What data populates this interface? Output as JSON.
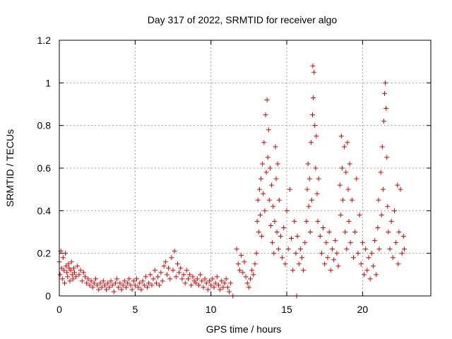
{
  "chart_data": {
    "type": "scatter",
    "title": "Day 317 of 2022, SRMTID for receiver algo",
    "xlabel": "GPS time / hours",
    "ylabel": "SRMTID / TECUs",
    "xlim": [
      0,
      24.5
    ],
    "ylim": [
      0,
      1.2
    ],
    "xticks": [
      0,
      5,
      10,
      15,
      20
    ],
    "xtick_labels": [
      "0",
      "5",
      "10",
      "15",
      "20"
    ],
    "yticks": [
      0,
      0.2,
      0.4,
      0.6,
      0.8,
      1.0,
      1.2
    ],
    "ytick_labels": [
      "0",
      "0.2",
      "0.4",
      "0.6",
      "0.8",
      "1",
      "1.2"
    ],
    "grid": true,
    "marker": "+",
    "series": [
      {
        "name": "SRMTID",
        "color": "#e00000",
        "points": [
          [
            0.0,
            0.16
          ],
          [
            0.05,
            0.1
          ],
          [
            0.1,
            0.21
          ],
          [
            0.15,
            0.13
          ],
          [
            0.2,
            0.08
          ],
          [
            0.25,
            0.18
          ],
          [
            0.3,
            0.12
          ],
          [
            0.35,
            0.06
          ],
          [
            0.4,
            0.2
          ],
          [
            0.45,
            0.14
          ],
          [
            0.5,
            0.11
          ],
          [
            0.55,
            0.09
          ],
          [
            0.6,
            0.15
          ],
          [
            0.65,
            0.13
          ],
          [
            0.7,
            0.07
          ],
          [
            0.75,
            0.12
          ],
          [
            0.8,
            0.16
          ],
          [
            0.85,
            0.1
          ],
          [
            0.9,
            0.08
          ],
          [
            0.95,
            0.13
          ],
          [
            1.0,
            0.11
          ],
          [
            1.1,
            0.09
          ],
          [
            1.2,
            0.14
          ],
          [
            1.3,
            0.1
          ],
          [
            1.4,
            0.12
          ],
          [
            1.5,
            0.07
          ],
          [
            1.6,
            0.11
          ],
          [
            1.7,
            0.09
          ],
          [
            1.8,
            0.06
          ],
          [
            1.9,
            0.08
          ],
          [
            2.0,
            0.05
          ],
          [
            2.1,
            0.07
          ],
          [
            2.2,
            0.04
          ],
          [
            2.3,
            0.06
          ],
          [
            2.4,
            0.08
          ],
          [
            2.5,
            0.05
          ],
          [
            2.6,
            0.03
          ],
          [
            2.7,
            0.06
          ],
          [
            2.8,
            0.04
          ],
          [
            2.9,
            0.07
          ],
          [
            3.0,
            0.05
          ],
          [
            3.1,
            0.03
          ],
          [
            3.2,
            0.06
          ],
          [
            3.3,
            0.04
          ],
          [
            3.4,
            0.07
          ],
          [
            3.5,
            0.05
          ],
          [
            3.6,
            0.02
          ],
          [
            3.7,
            0.06
          ],
          [
            3.8,
            0.08
          ],
          [
            3.9,
            0.04
          ],
          [
            4.0,
            0.06
          ],
          [
            4.1,
            0.03
          ],
          [
            4.2,
            0.05
          ],
          [
            4.3,
            0.07
          ],
          [
            4.4,
            0.04
          ],
          [
            4.5,
            0.06
          ],
          [
            4.6,
            0.08
          ],
          [
            4.7,
            0.05
          ],
          [
            4.8,
            0.03
          ],
          [
            4.9,
            0.07
          ],
          [
            5.0,
            0.05
          ],
          [
            5.1,
            0.08
          ],
          [
            5.2,
            0.04
          ],
          [
            5.3,
            0.06
          ],
          [
            5.4,
            0.03
          ],
          [
            5.5,
            0.07
          ],
          [
            5.6,
            0.05
          ],
          [
            5.7,
            0.09
          ],
          [
            5.8,
            0.04
          ],
          [
            5.9,
            0.06
          ],
          [
            6.0,
            0.1
          ],
          [
            6.1,
            0.05
          ],
          [
            6.2,
            0.08
          ],
          [
            6.3,
            0.12
          ],
          [
            6.4,
            0.06
          ],
          [
            6.5,
            0.09
          ],
          [
            6.6,
            0.05
          ],
          [
            6.7,
            0.11
          ],
          [
            6.8,
            0.07
          ],
          [
            6.9,
            0.14
          ],
          [
            7.0,
            0.16
          ],
          [
            7.1,
            0.1
          ],
          [
            7.2,
            0.13
          ],
          [
            7.3,
            0.08
          ],
          [
            7.4,
            0.18
          ],
          [
            7.5,
            0.12
          ],
          [
            7.6,
            0.21
          ],
          [
            7.7,
            0.09
          ],
          [
            7.8,
            0.15
          ],
          [
            7.9,
            0.11
          ],
          [
            8.0,
            0.13
          ],
          [
            8.1,
            0.08
          ],
          [
            8.2,
            0.1
          ],
          [
            8.3,
            0.06
          ],
          [
            8.4,
            0.12
          ],
          [
            8.5,
            0.08
          ],
          [
            8.6,
            0.1
          ],
          [
            8.7,
            0.05
          ],
          [
            8.8,
            0.09
          ],
          [
            8.9,
            0.07
          ],
          [
            9.0,
            0.06
          ],
          [
            9.1,
            0.08
          ],
          [
            9.2,
            0.05
          ],
          [
            9.3,
            0.1
          ],
          [
            9.4,
            0.07
          ],
          [
            9.5,
            0.04
          ],
          [
            9.6,
            0.08
          ],
          [
            9.7,
            0.06
          ],
          [
            9.8,
            0.03
          ],
          [
            9.9,
            0.07
          ],
          [
            10.0,
            0.05
          ],
          [
            10.1,
            0.08
          ],
          [
            10.2,
            0.04
          ],
          [
            10.3,
            0.06
          ],
          [
            10.4,
            0.09
          ],
          [
            10.5,
            0.05
          ],
          [
            10.6,
            0.03
          ],
          [
            10.7,
            0.07
          ],
          [
            10.8,
            0.04
          ],
          [
            10.9,
            0.06
          ],
          [
            11.0,
            0.08
          ],
          [
            11.1,
            0.04
          ],
          [
            11.2,
            0.02
          ],
          [
            11.3,
            0.06
          ],
          [
            11.45,
            0.0
          ],
          [
            11.7,
            0.22
          ],
          [
            11.8,
            0.15
          ],
          [
            11.9,
            0.12
          ],
          [
            12.0,
            0.19
          ],
          [
            12.1,
            0.11
          ],
          [
            12.2,
            0.16
          ],
          [
            12.3,
            0.09
          ],
          [
            12.4,
            0.06
          ],
          [
            12.5,
            0.04
          ],
          [
            12.6,
            0.08
          ],
          [
            12.7,
            0.12
          ],
          [
            12.8,
            0.1
          ],
          [
            12.9,
            0.15
          ],
          [
            13.0,
            0.2
          ],
          [
            13.05,
            0.35
          ],
          [
            13.1,
            0.45
          ],
          [
            13.15,
            0.3
          ],
          [
            13.2,
            0.5
          ],
          [
            13.25,
            0.38
          ],
          [
            13.3,
            0.55
          ],
          [
            13.35,
            0.28
          ],
          [
            13.4,
            0.62
          ],
          [
            13.45,
            0.48
          ],
          [
            13.5,
            0.72
          ],
          [
            13.55,
            0.4
          ],
          [
            13.6,
            0.85
          ],
          [
            13.65,
            0.58
          ],
          [
            13.7,
            0.92
          ],
          [
            13.75,
            0.65
          ],
          [
            13.8,
            0.78
          ],
          [
            13.85,
            0.45
          ],
          [
            13.9,
            0.6
          ],
          [
            13.95,
            0.33
          ],
          [
            14.0,
            0.52
          ],
          [
            14.05,
            0.25
          ],
          [
            14.1,
            0.42
          ],
          [
            14.15,
            0.2
          ],
          [
            14.2,
            0.35
          ],
          [
            14.25,
            0.7
          ],
          [
            14.3,
            0.55
          ],
          [
            14.35,
            0.3
          ],
          [
            14.4,
            0.62
          ],
          [
            14.45,
            0.22
          ],
          [
            14.5,
            0.45
          ],
          [
            14.6,
            0.28
          ],
          [
            14.7,
            0.18
          ],
          [
            14.8,
            0.32
          ],
          [
            14.9,
            0.15
          ],
          [
            15.0,
            0.4
          ],
          [
            15.1,
            0.22
          ],
          [
            15.2,
            0.5
          ],
          [
            15.3,
            0.27
          ],
          [
            15.4,
            0.12
          ],
          [
            15.5,
            0.35
          ],
          [
            15.6,
            0.2
          ],
          [
            15.65,
            0.0
          ],
          [
            15.7,
            0.28
          ],
          [
            15.8,
            0.15
          ],
          [
            15.9,
            0.22
          ],
          [
            16.0,
            0.18
          ],
          [
            16.1,
            0.12
          ],
          [
            16.2,
            0.25
          ],
          [
            16.3,
            0.35
          ],
          [
            16.35,
            0.5
          ],
          [
            16.4,
            0.62
          ],
          [
            16.45,
            0.42
          ],
          [
            16.5,
            0.55
          ],
          [
            16.55,
            0.3
          ],
          [
            16.6,
            0.72
          ],
          [
            16.65,
            0.45
          ],
          [
            16.7,
            0.85
          ],
          [
            16.72,
            1.08
          ],
          [
            16.75,
            0.93
          ],
          [
            16.8,
            1.05
          ],
          [
            16.85,
            0.8
          ],
          [
            16.9,
            0.6
          ],
          [
            16.95,
            0.75
          ],
          [
            17.0,
            0.48
          ],
          [
            17.05,
            0.35
          ],
          [
            17.1,
            0.55
          ],
          [
            17.2,
            0.28
          ],
          [
            17.3,
            0.2
          ],
          [
            17.4,
            0.32
          ],
          [
            17.5,
            0.15
          ],
          [
            17.6,
            0.25
          ],
          [
            17.7,
            0.18
          ],
          [
            17.8,
            0.3
          ],
          [
            17.9,
            0.12
          ],
          [
            18.0,
            0.22
          ],
          [
            18.1,
            0.17
          ],
          [
            18.2,
            0.26
          ],
          [
            18.3,
            0.2
          ],
          [
            18.4,
            0.14
          ],
          [
            18.5,
            0.52
          ],
          [
            18.55,
            0.38
          ],
          [
            18.6,
            0.75
          ],
          [
            18.65,
            0.6
          ],
          [
            18.7,
            0.45
          ],
          [
            18.8,
            0.7
          ],
          [
            18.85,
            0.3
          ],
          [
            18.9,
            0.58
          ],
          [
            18.95,
            0.22
          ],
          [
            19.0,
            0.72
          ],
          [
            19.05,
            0.5
          ],
          [
            19.1,
            0.35
          ],
          [
            19.15,
            0.62
          ],
          [
            19.2,
            0.25
          ],
          [
            19.3,
            0.45
          ],
          [
            19.4,
            0.18
          ],
          [
            19.5,
            0.3
          ],
          [
            19.6,
            0.55
          ],
          [
            19.7,
            0.2
          ],
          [
            19.8,
            0.38
          ],
          [
            19.9,
            0.15
          ],
          [
            20.0,
            0.25
          ],
          [
            20.1,
            0.1
          ],
          [
            20.2,
            0.22
          ],
          [
            20.3,
            0.12
          ],
          [
            20.4,
            0.18
          ],
          [
            20.5,
            0.08
          ],
          [
            20.6,
            0.2
          ],
          [
            20.7,
            0.14
          ],
          [
            20.8,
            0.26
          ],
          [
            20.9,
            0.1
          ],
          [
            21.0,
            0.32
          ],
          [
            21.05,
            0.45
          ],
          [
            21.1,
            0.22
          ],
          [
            21.2,
            0.58
          ],
          [
            21.25,
            0.38
          ],
          [
            21.3,
            0.7
          ],
          [
            21.35,
            0.5
          ],
          [
            21.4,
            0.82
          ],
          [
            21.45,
            0.95
          ],
          [
            21.5,
            1.0
          ],
          [
            21.55,
            0.88
          ],
          [
            21.6,
            0.65
          ],
          [
            21.65,
            0.42
          ],
          [
            21.7,
            0.3
          ],
          [
            21.8,
            0.22
          ],
          [
            21.9,
            0.35
          ],
          [
            22.0,
            0.18
          ],
          [
            22.1,
            0.4
          ],
          [
            22.2,
            0.25
          ],
          [
            22.3,
            0.52
          ],
          [
            22.35,
            0.15
          ],
          [
            22.4,
            0.3
          ],
          [
            22.5,
            0.5
          ],
          [
            22.6,
            0.2
          ],
          [
            22.7,
            0.28
          ],
          [
            22.75,
            0.22
          ]
        ]
      }
    ]
  }
}
